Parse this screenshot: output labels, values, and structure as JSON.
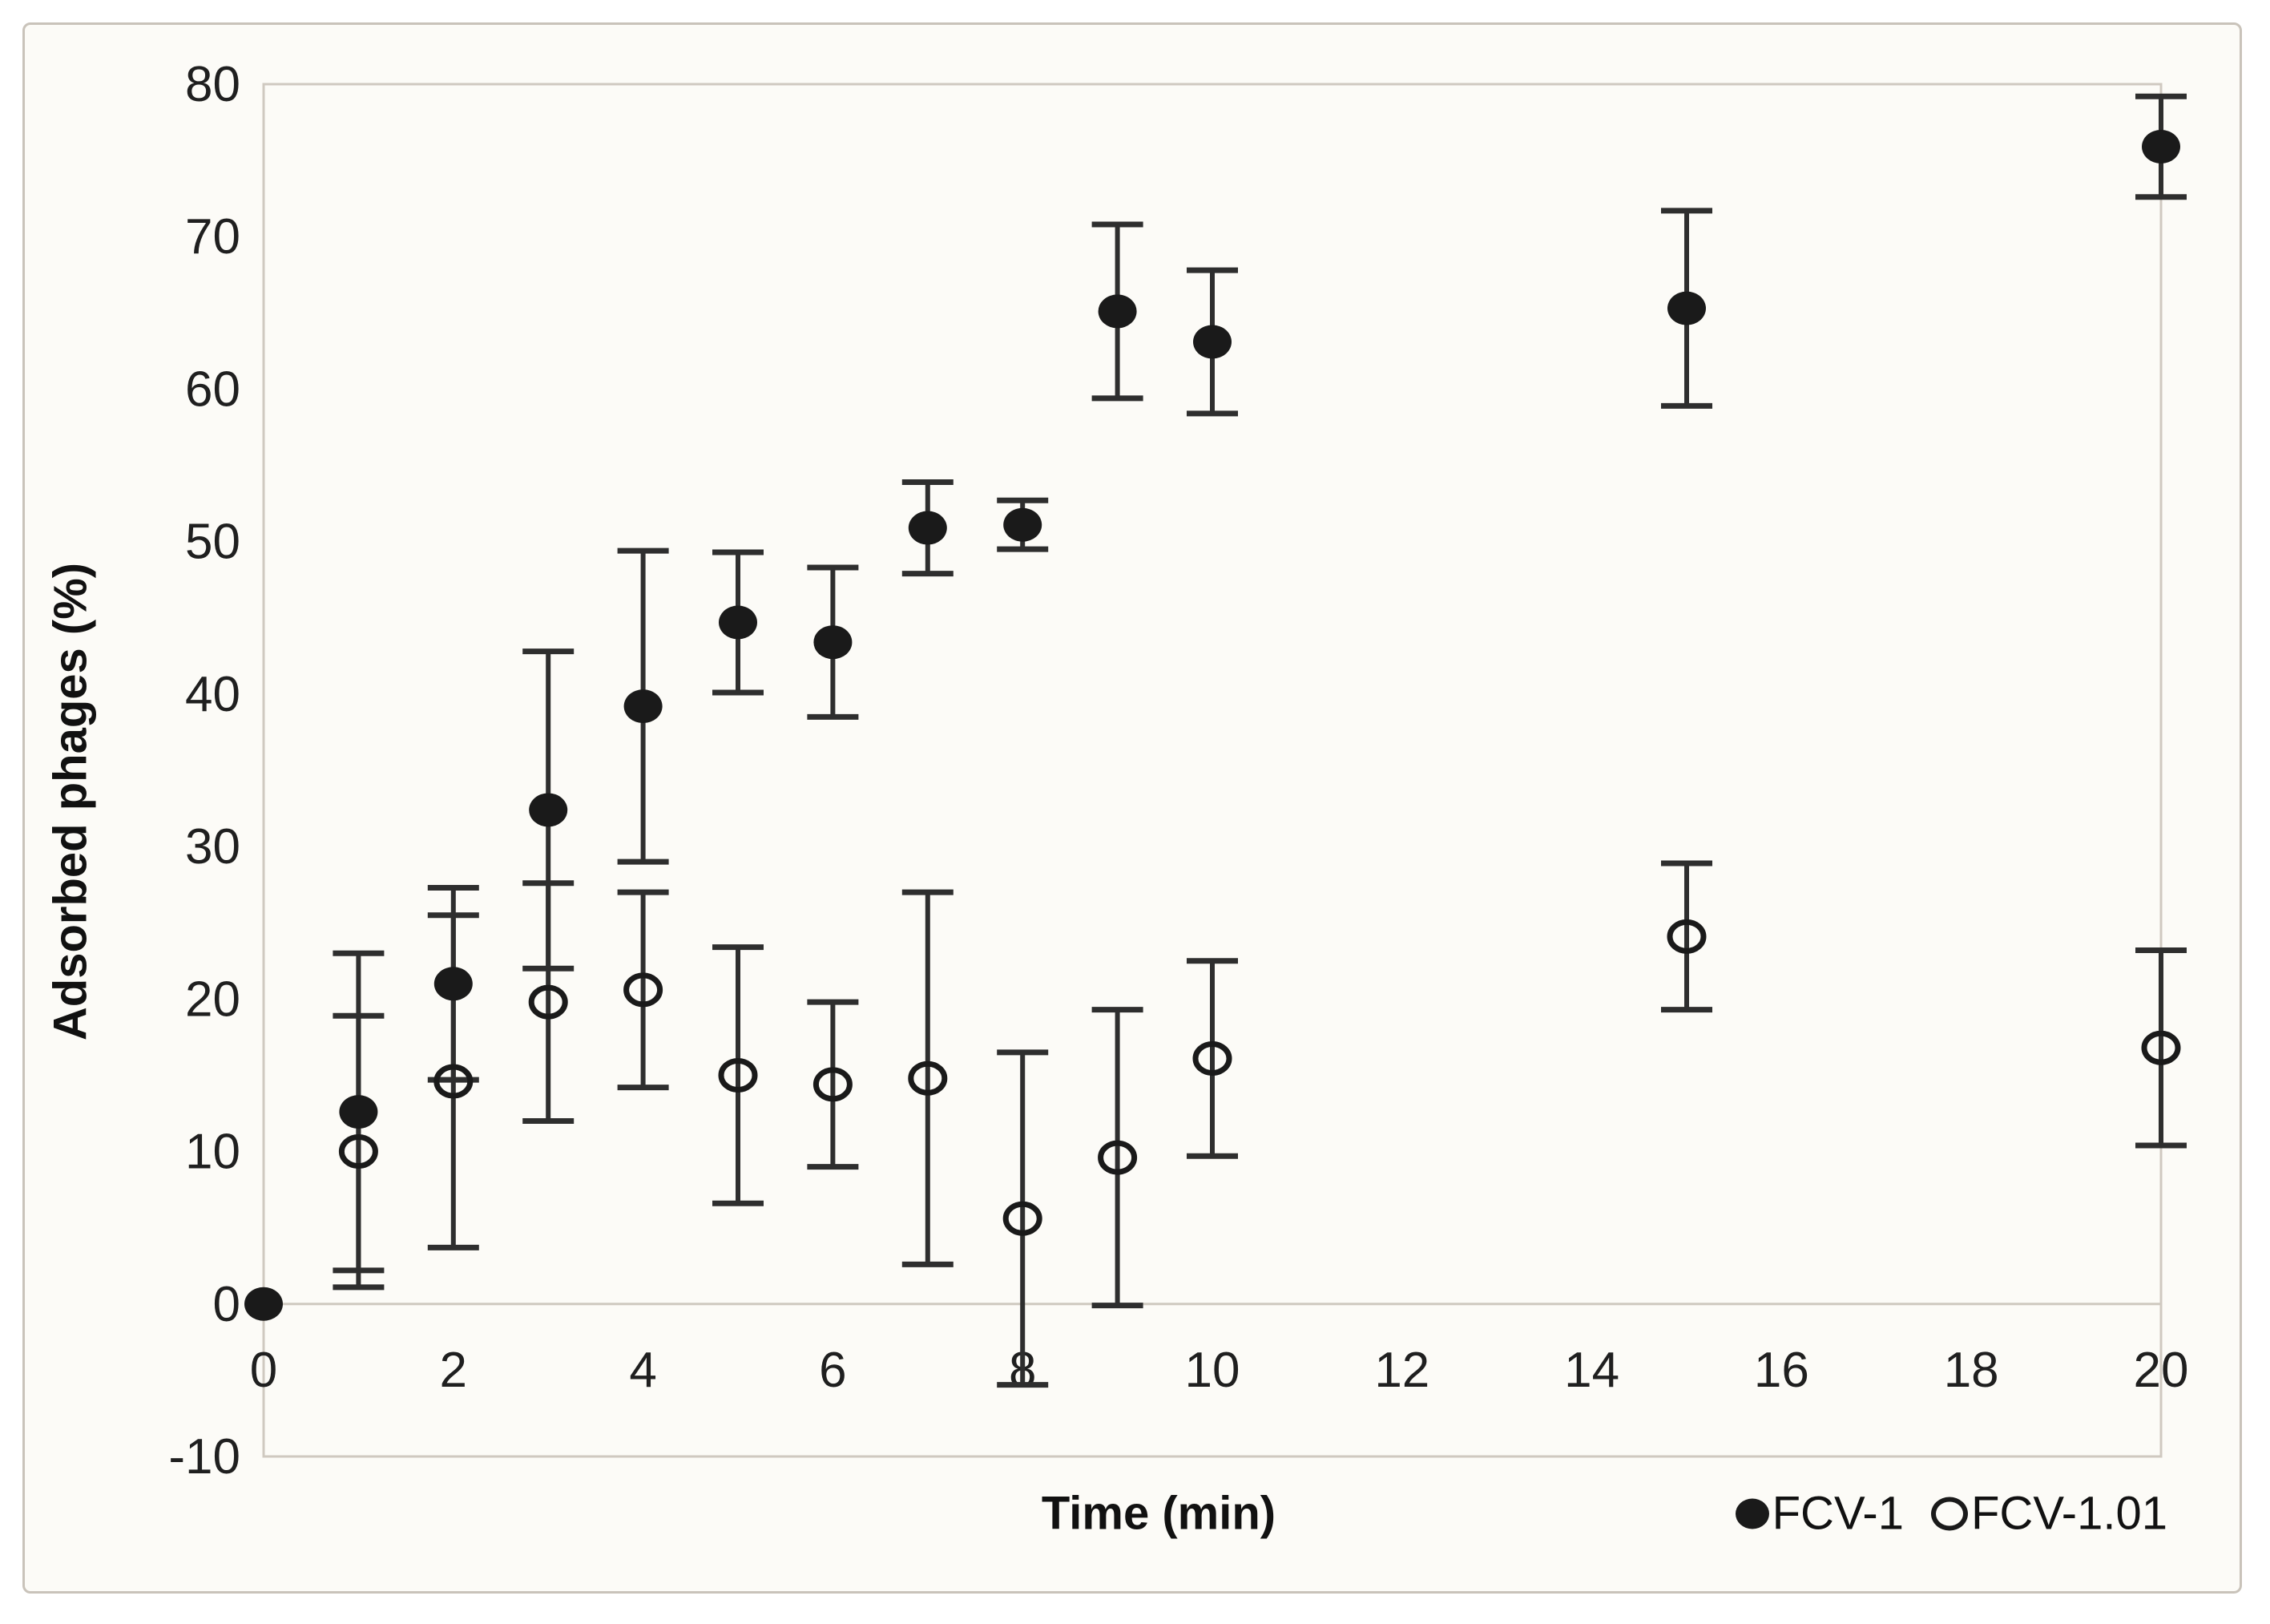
{
  "figure": {
    "background_color": "#fcfbf7",
    "border_color": "#c9c3ba",
    "frame_color": "#cfc9c0",
    "marker_color": "#1a1a1a",
    "errorbar_color": "#2e2e2e",
    "text_color": "#1f1f1f"
  },
  "chart_data": {
    "type": "scatter",
    "title": "",
    "xlabel": "Time (min)",
    "ylabel": "Adsorbed phages (%)",
    "xlim": [
      0,
      20
    ],
    "ylim": [
      -10,
      80
    ],
    "x_ticks": [
      0,
      2,
      4,
      6,
      8,
      10,
      12,
      14,
      16,
      18,
      20
    ],
    "y_ticks": [
      80,
      70,
      60,
      50,
      40,
      30,
      20,
      10,
      0,
      -10
    ],
    "grid": false,
    "zero_axis_line": true,
    "legend_position": "bottom-right",
    "series": [
      {
        "name": "FCV-1",
        "marker": "filled-circle",
        "x": [
          0,
          1,
          2,
          3,
          4,
          5,
          6,
          7,
          8,
          9,
          10,
          15,
          20
        ],
        "y": [
          0,
          12.6,
          21.0,
          32.4,
          39.2,
          44.7,
          43.4,
          50.9,
          51.1,
          65.1,
          63.1,
          65.3,
          75.9
        ],
        "yerr": [
          0,
          10.4,
          6.3,
          10.4,
          10.2,
          4.6,
          4.9,
          3.0,
          1.6,
          5.7,
          4.7,
          6.4,
          3.3
        ]
      },
      {
        "name": "FCV-1.01",
        "marker": "open-circle",
        "x": [
          1,
          2,
          3,
          4,
          5,
          6,
          7,
          8,
          9,
          10,
          15,
          20
        ],
        "y": [
          10.0,
          14.6,
          19.8,
          20.6,
          15.0,
          14.4,
          14.8,
          5.6,
          9.6,
          16.1,
          24.1,
          16.8
        ],
        "yerr": [
          8.9,
          10.9,
          7.8,
          6.4,
          8.4,
          5.4,
          12.2,
          10.9,
          9.7,
          6.4,
          4.8,
          6.4
        ]
      }
    ]
  }
}
